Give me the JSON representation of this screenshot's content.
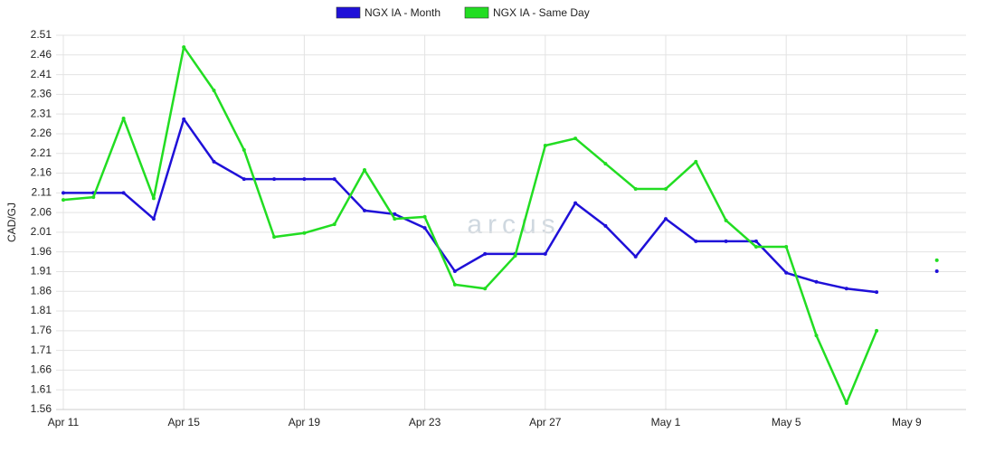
{
  "chart_data": {
    "type": "line",
    "y_label": "CAD/GJ",
    "watermark": "arcus",
    "categories": [
      "Apr 11",
      null,
      null,
      null,
      "Apr 15",
      null,
      null,
      null,
      "Apr 19",
      null,
      null,
      null,
      "Apr 23",
      null,
      null,
      null,
      "Apr 27",
      null,
      null,
      null,
      "May 1",
      null,
      null,
      null,
      "May 5",
      null,
      null,
      null,
      "May 9",
      null
    ],
    "series": [
      {
        "name": "NGX IA - Month",
        "color": "#1f10d8",
        "values": [
          2.11,
          2.11,
          2.11,
          2.044,
          2.297,
          2.189,
          2.145,
          2.145,
          2.145,
          2.145,
          2.065,
          2.056,
          2.021,
          1.911,
          1.955,
          1.955,
          1.955,
          2.084,
          2.026,
          1.948,
          2.044,
          1.987,
          1.987,
          1.987,
          1.907,
          1.884,
          1.867,
          1.858,
          null,
          1.911
        ]
      },
      {
        "name": "NGX IA - Same Day",
        "color": "#22dd22",
        "values": [
          2.092,
          2.099,
          2.299,
          2.096,
          2.48,
          2.37,
          2.219,
          1.998,
          2.008,
          2.03,
          2.168,
          2.044,
          2.049,
          1.877,
          1.867,
          1.95,
          2.23,
          2.248,
          2.184,
          2.12,
          2.12,
          2.189,
          2.04,
          1.973,
          1.973,
          1.748,
          1.576,
          1.76,
          null,
          1.939
        ]
      }
    ],
    "ylim": [
      1.56,
      2.51
    ],
    "yticks": [
      1.56,
      1.61,
      1.66,
      1.71,
      1.76,
      1.81,
      1.86,
      1.91,
      1.96,
      2.01,
      2.06,
      2.11,
      2.16,
      2.21,
      2.26,
      2.31,
      2.36,
      2.41,
      2.46,
      2.51
    ],
    "grid": true,
    "legend": "top"
  }
}
